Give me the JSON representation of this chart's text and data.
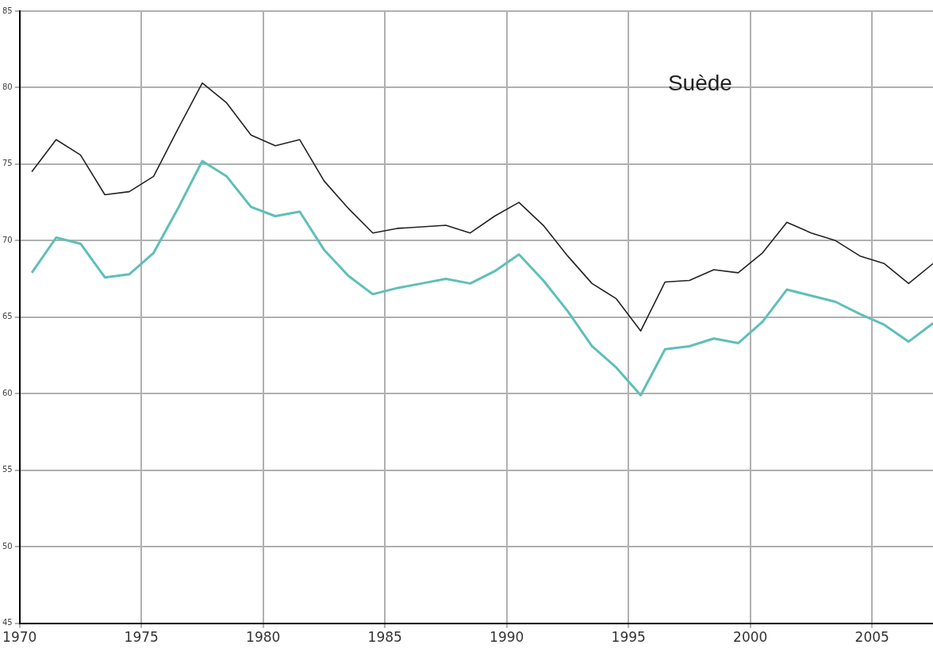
{
  "chart_data": {
    "type": "line",
    "title": "Suède",
    "x": [
      1970.5,
      1971.5,
      1972.5,
      1973.5,
      1974.5,
      1975.5,
      1976.5,
      1977.5,
      1978.5,
      1979.5,
      1980.5,
      1981.5,
      1982.5,
      1983.5,
      1984.5,
      1985.5,
      1986.5,
      1987.5,
      1988.5,
      1989.5,
      1990.5,
      1991.5,
      1992.5,
      1993.5,
      1994.5,
      1995.5,
      1996.5,
      1997.5,
      1998.5,
      1999.5,
      2000.5,
      2001.5,
      2002.5,
      2003.5,
      2004.5,
      2005.5,
      2006.5,
      2007.5
    ],
    "series": [
      {
        "color": "#222222",
        "values": [
          74.5,
          76.6,
          75.6,
          73.0,
          73.2,
          74.2,
          77.3,
          80.3,
          79.0,
          76.9,
          76.2,
          76.6,
          73.9,
          72.1,
          70.5,
          70.8,
          70.9,
          71.0,
          70.5,
          71.6,
          72.5,
          71.0,
          69.0,
          67.2,
          66.2,
          64.1,
          67.3,
          67.4,
          68.1,
          67.9,
          69.2,
          71.2,
          70.5,
          70.0,
          69.0,
          68.5,
          67.2,
          68.5
        ]
      },
      {
        "color": "#5fbfb8",
        "values": [
          67.9,
          70.2,
          69.8,
          67.6,
          67.8,
          69.2,
          72.1,
          75.2,
          74.2,
          72.2,
          71.6,
          71.9,
          69.4,
          67.7,
          66.5,
          66.9,
          67.2,
          67.5,
          67.2,
          68.0,
          69.1,
          67.4,
          65.4,
          63.1,
          61.7,
          59.9,
          62.9,
          63.1,
          63.6,
          63.3,
          64.7,
          66.8,
          66.4,
          66.0,
          65.2,
          64.5,
          63.4,
          64.6
        ]
      }
    ],
    "xlim": [
      1970,
      2007.5
    ],
    "xticks": [
      1970,
      1975,
      1980,
      1985,
      1990,
      1995,
      2000,
      2005
    ],
    "ylim": [
      45,
      85
    ],
    "yticks": [
      45,
      50,
      55,
      60,
      65,
      70,
      75,
      80,
      85
    ],
    "grid": true,
    "legend": false,
    "marker": "none",
    "line_style": "solid"
  }
}
